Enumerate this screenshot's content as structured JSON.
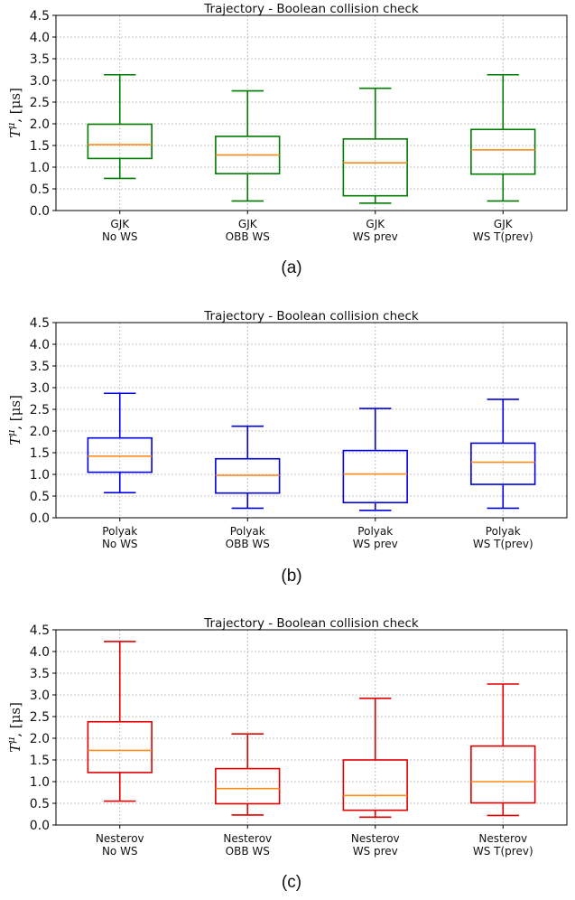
{
  "chart_data": [
    {
      "type": "box",
      "panel_label": "(a)",
      "title": "Trajectory - Boolean collision check",
      "ylabel": "T^μ, [μs]",
      "ylim": [
        0,
        4.5
      ],
      "yticks": [
        "0.0",
        "0.5",
        "1.0",
        "1.5",
        "2.0",
        "2.5",
        "3.0",
        "3.5",
        "4.0",
        "4.5"
      ],
      "grid": true,
      "color": "#007a00",
      "median_color": "#ff8c1a",
      "categories": [
        {
          "line1": "GJK",
          "line2": "No WS"
        },
        {
          "line1": "GJK",
          "line2": "OBB WS"
        },
        {
          "line1": "GJK",
          "line2": "WS prev"
        },
        {
          "line1": "GJK",
          "line2": "WS T(prev)"
        }
      ],
      "boxes": [
        {
          "whisker_low": 0.74,
          "q1": 1.2,
          "median": 1.52,
          "q3": 1.99,
          "whisker_high": 3.13
        },
        {
          "whisker_low": 0.22,
          "q1": 0.85,
          "median": 1.28,
          "q3": 1.71,
          "whisker_high": 2.76
        },
        {
          "whisker_low": 0.17,
          "q1": 0.34,
          "median": 1.1,
          "q3": 1.65,
          "whisker_high": 2.82
        },
        {
          "whisker_low": 0.22,
          "q1": 0.84,
          "median": 1.4,
          "q3": 1.87,
          "whisker_high": 3.13
        }
      ]
    },
    {
      "type": "box",
      "panel_label": "(b)",
      "title": "Trajectory - Boolean collision check",
      "ylabel": "T^μ, [μs]",
      "ylim": [
        0,
        4.5
      ],
      "yticks": [
        "0.0",
        "0.5",
        "1.0",
        "1.5",
        "2.0",
        "2.5",
        "3.0",
        "3.5",
        "4.0",
        "4.5"
      ],
      "grid": true,
      "color": "#0000e0",
      "median_color": "#ff8c1a",
      "categories": [
        {
          "line1": "Polyak",
          "line2": "No WS"
        },
        {
          "line1": "Polyak",
          "line2": "OBB WS"
        },
        {
          "line1": "Polyak",
          "line2": "WS prev"
        },
        {
          "line1": "Polyak",
          "line2": "WS T(prev)"
        }
      ],
      "boxes": [
        {
          "whisker_low": 0.58,
          "q1": 1.05,
          "median": 1.42,
          "q3": 1.84,
          "whisker_high": 2.87
        },
        {
          "whisker_low": 0.22,
          "q1": 0.57,
          "median": 0.98,
          "q3": 1.36,
          "whisker_high": 2.11
        },
        {
          "whisker_low": 0.17,
          "q1": 0.35,
          "median": 1.01,
          "q3": 1.55,
          "whisker_high": 2.52
        },
        {
          "whisker_low": 0.22,
          "q1": 0.77,
          "median": 1.28,
          "q3": 1.72,
          "whisker_high": 2.73
        }
      ]
    },
    {
      "type": "box",
      "panel_label": "(c)",
      "title": "Trajectory - Boolean collision check",
      "ylabel": "T^μ, [μs]",
      "ylim": [
        0,
        4.5
      ],
      "yticks": [
        "0.0",
        "0.5",
        "1.0",
        "1.5",
        "2.0",
        "2.5",
        "3.0",
        "3.5",
        "4.0",
        "4.5"
      ],
      "grid": true,
      "color": "#e00000",
      "median_color": "#ff8c1a",
      "categories": [
        {
          "line1": "Nesterov",
          "line2": "No WS"
        },
        {
          "line1": "Nesterov",
          "line2": "OBB WS"
        },
        {
          "line1": "Nesterov",
          "line2": "WS prev"
        },
        {
          "line1": "Nesterov",
          "line2": "WS T(prev)"
        }
      ],
      "boxes": [
        {
          "whisker_low": 0.55,
          "q1": 1.21,
          "median": 1.72,
          "q3": 2.38,
          "whisker_high": 4.23
        },
        {
          "whisker_low": 0.23,
          "q1": 0.49,
          "median": 0.84,
          "q3": 1.3,
          "whisker_high": 2.1
        },
        {
          "whisker_low": 0.18,
          "q1": 0.34,
          "median": 0.68,
          "q3": 1.5,
          "whisker_high": 2.92
        },
        {
          "whisker_low": 0.22,
          "q1": 0.51,
          "median": 1.0,
          "q3": 1.82,
          "whisker_high": 3.25
        }
      ]
    }
  ]
}
